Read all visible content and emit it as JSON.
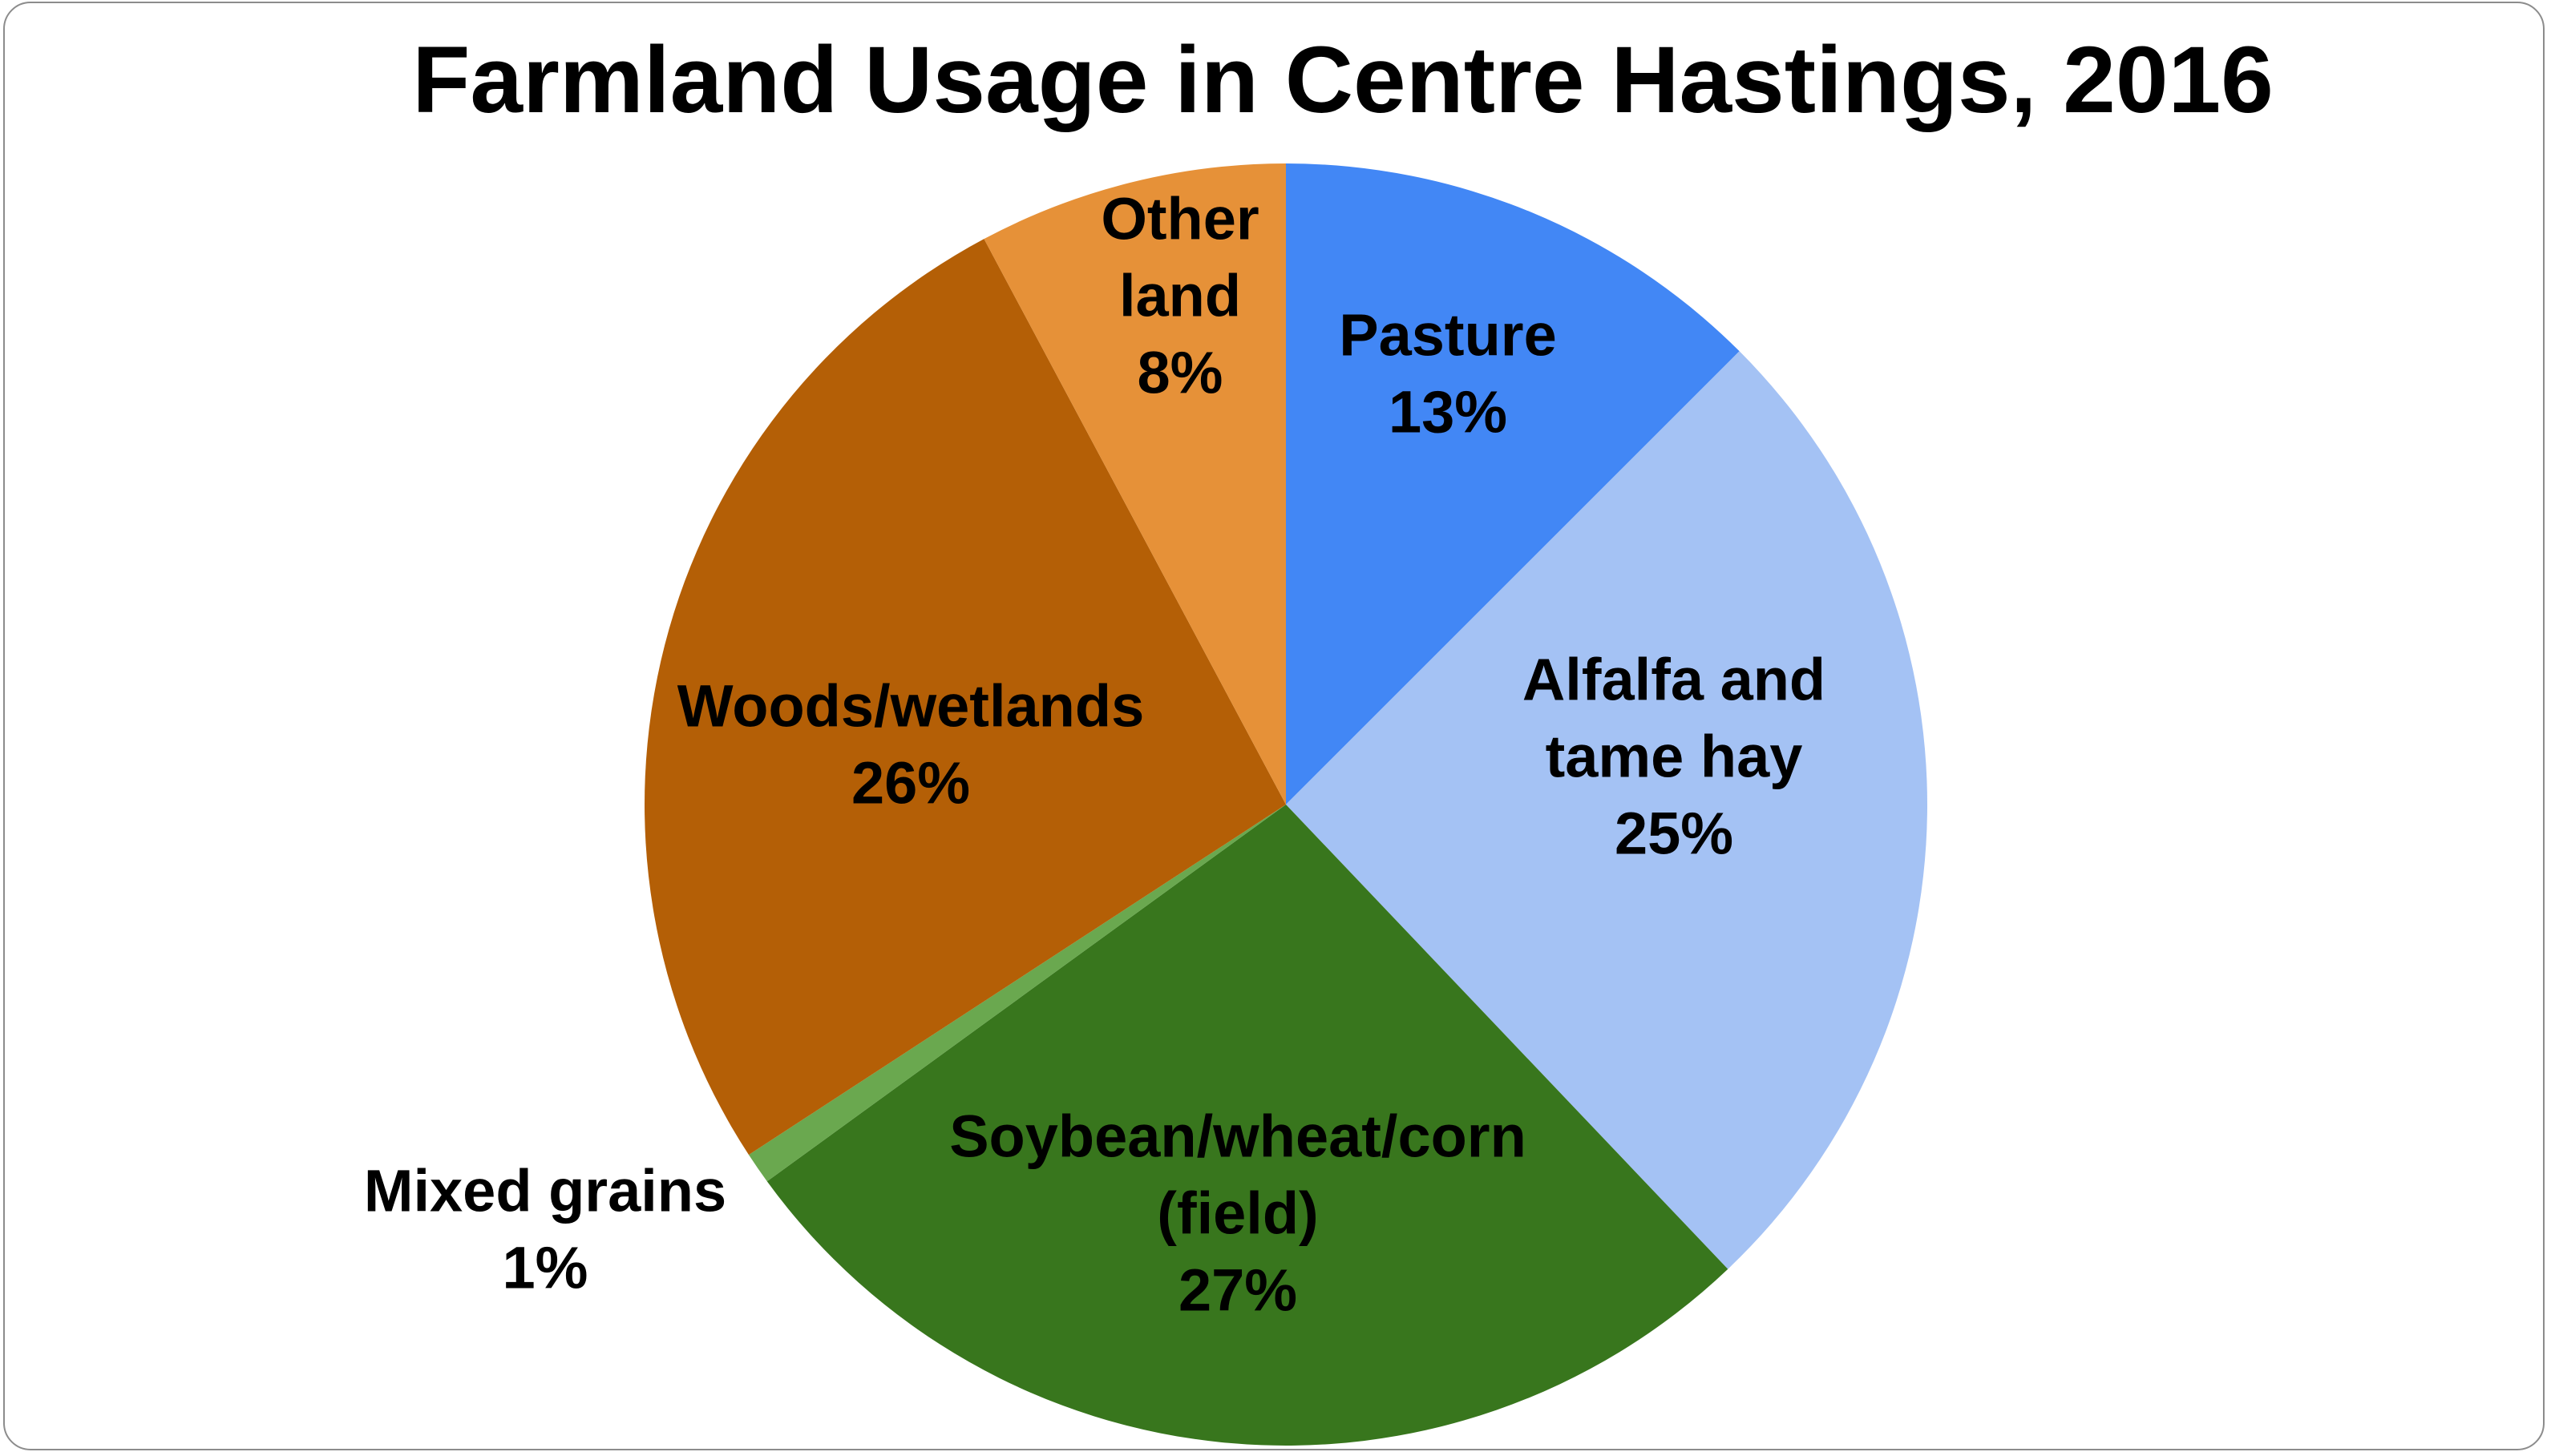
{
  "chart_data": {
    "type": "pie",
    "title": "Farmland Usage in Centre Hastings, 2016",
    "start_angle_deg": 0,
    "direction": "clockwise",
    "slices": [
      {
        "label": "Pasture",
        "label_lines": [
          "Pasture"
        ],
        "percent_label": "13%",
        "value": 12.5,
        "color": "#4287f5"
      },
      {
        "label": "Alfalfa and tame hay",
        "label_lines": [
          "Alfalfa and",
          "tame hay"
        ],
        "percent_label": "25%",
        "value": 25.4,
        "color": "#a4c2f4"
      },
      {
        "label": "Soybean/wheat/corn (field)",
        "label_lines": [
          "Soybean/wheat/corn",
          "(field)"
        ],
        "percent_label": "27%",
        "value": 27.1,
        "color": "#38761d"
      },
      {
        "label": "Mixed grains",
        "label_lines": [
          "Mixed grains"
        ],
        "percent_label": "1%",
        "value": 0.8,
        "color": "#6aa84f"
      },
      {
        "label": "Woods/wetlands",
        "label_lines": [
          "Woods/wetlands"
        ],
        "percent_label": "26%",
        "value": 26.4,
        "color": "#b45f06"
      },
      {
        "label": "Other land",
        "label_lines": [
          "Other",
          "land"
        ],
        "percent_label": "8%",
        "value": 7.8,
        "color": "#e69138"
      }
    ],
    "legend": "none",
    "data_labels": "category and percent"
  }
}
